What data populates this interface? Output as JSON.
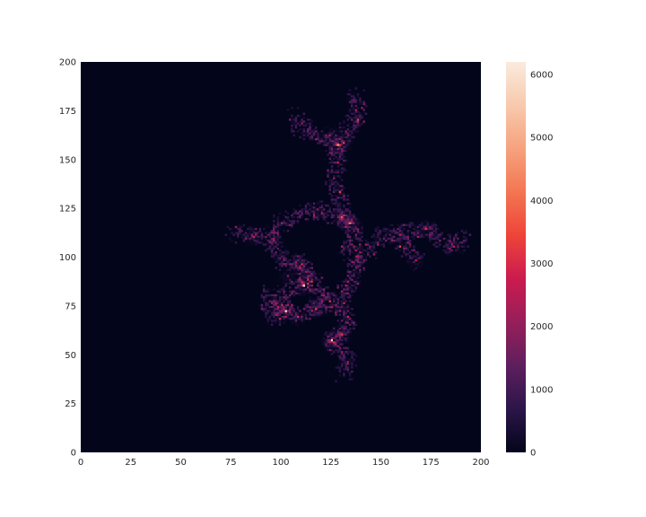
{
  "chart_data": {
    "type": "heatmap",
    "title": "",
    "xlabel": "",
    "ylabel": "",
    "xlim": [
      0,
      200
    ],
    "ylim": [
      0,
      200
    ],
    "x_ticks": [
      0,
      25,
      50,
      75,
      100,
      125,
      150,
      175,
      200
    ],
    "y_ticks": [
      0,
      25,
      50,
      75,
      100,
      125,
      150,
      175,
      200
    ],
    "x_tick_labels": [
      "0",
      "25",
      "50",
      "75",
      "100",
      "125",
      "150",
      "175",
      "200"
    ],
    "y_tick_labels": [
      "0",
      "25",
      "50",
      "75",
      "100",
      "125",
      "150",
      "175",
      "200"
    ],
    "grid": false,
    "colormap": "rocket",
    "background_color": "#03051a",
    "colorbar": {
      "range": [
        0,
        6200
      ],
      "ticks": [
        0,
        1000,
        2000,
        3000,
        4000,
        5000,
        6000
      ],
      "tick_labels": [
        "0",
        "1000",
        "2000",
        "3000",
        "4000",
        "5000",
        "6000"
      ],
      "stops": [
        "#03051a",
        "#2c1549",
        "#5e1f5e",
        "#961f5a",
        "#cb1b4f",
        "#ee4439",
        "#f37651",
        "#f6a27e",
        "#f8c9ad",
        "#faebdd"
      ]
    },
    "clusters": [
      {
        "x": 131,
        "y": 158,
        "peak": 3000
      },
      {
        "x": 128,
        "y": 157,
        "peak": 4500
      },
      {
        "x": 124,
        "y": 162,
        "peak": 2400
      },
      {
        "x": 134,
        "y": 117,
        "peak": 4200
      },
      {
        "x": 130,
        "y": 120,
        "peak": 2800
      },
      {
        "x": 111,
        "y": 85,
        "peak": 5200
      },
      {
        "x": 102,
        "y": 72,
        "peak": 5000
      },
      {
        "x": 98,
        "y": 74,
        "peak": 2600
      },
      {
        "x": 108,
        "y": 69,
        "peak": 2800
      },
      {
        "x": 117,
        "y": 73,
        "peak": 2600
      },
      {
        "x": 125,
        "y": 57,
        "peak": 5600
      },
      {
        "x": 130,
        "y": 60,
        "peak": 3200
      },
      {
        "x": 86,
        "y": 110,
        "peak": 2600
      },
      {
        "x": 96,
        "y": 108,
        "peak": 2200
      },
      {
        "x": 172,
        "y": 114,
        "peak": 2400
      },
      {
        "x": 186,
        "y": 105,
        "peak": 2200
      },
      {
        "x": 167,
        "y": 98,
        "peak": 1800
      },
      {
        "x": 118,
        "y": 124,
        "peak": 1800
      },
      {
        "x": 103,
        "y": 90,
        "peak": 1700
      },
      {
        "x": 138,
        "y": 98,
        "peak": 1600
      },
      {
        "x": 133,
        "y": 45,
        "peak": 1400
      },
      {
        "x": 136,
        "y": 180,
        "peak": 1300
      }
    ],
    "walk_segments": [
      [
        [
          131,
          40
        ],
        [
          133,
          47
        ],
        [
          128,
          53
        ],
        [
          125,
          57
        ],
        [
          131,
          62
        ],
        [
          134,
          68
        ],
        [
          129,
          74
        ],
        [
          123,
          78
        ],
        [
          117,
          73
        ],
        [
          110,
          70
        ],
        [
          102,
          72
        ],
        [
          99,
          79
        ],
        [
          105,
          84
        ],
        [
          111,
          85
        ],
        [
          113,
          92
        ],
        [
          107,
          98
        ],
        [
          101,
          96
        ],
        [
          97,
          103
        ],
        [
          95,
          110
        ],
        [
          99,
          117
        ],
        [
          108,
          121
        ],
        [
          118,
          124
        ],
        [
          126,
          120
        ],
        [
          134,
          117
        ],
        [
          137,
          111
        ],
        [
          133,
          104
        ],
        [
          138,
          98
        ],
        [
          143,
          103
        ],
        [
          149,
          110
        ],
        [
          157,
          112
        ],
        [
          165,
          113
        ],
        [
          172,
          114
        ],
        [
          179,
          109
        ],
        [
          185,
          105
        ],
        [
          192,
          109
        ]
      ],
      [
        [
          133,
          117
        ],
        [
          130,
          125
        ],
        [
          128,
          132
        ],
        [
          126,
          140
        ],
        [
          128,
          148
        ],
        [
          127,
          155
        ],
        [
          130,
          161
        ],
        [
          135,
          167
        ],
        [
          138,
          173
        ],
        [
          137,
          182
        ]
      ],
      [
        [
          127,
          157
        ],
        [
          121,
          160
        ],
        [
          115,
          163
        ],
        [
          110,
          166
        ],
        [
          107,
          172
        ]
      ],
      [
        [
          95,
          110
        ],
        [
          88,
          110
        ],
        [
          81,
          112
        ],
        [
          76,
          111
        ]
      ],
      [
        [
          157,
          112
        ],
        [
          163,
          104
        ],
        [
          167,
          97
        ]
      ],
      [
        [
          129,
          74
        ],
        [
          130,
          81
        ],
        [
          135,
          85
        ],
        [
          136,
          92
        ],
        [
          138,
          98
        ]
      ],
      [
        [
          117,
          73
        ],
        [
          120,
          80
        ],
        [
          117,
          86
        ],
        [
          112,
          90
        ],
        [
          107,
          98
        ]
      ],
      [
        [
          102,
          72
        ],
        [
          96,
          68
        ],
        [
          93,
          75
        ],
        [
          95,
          82
        ]
      ]
    ]
  }
}
